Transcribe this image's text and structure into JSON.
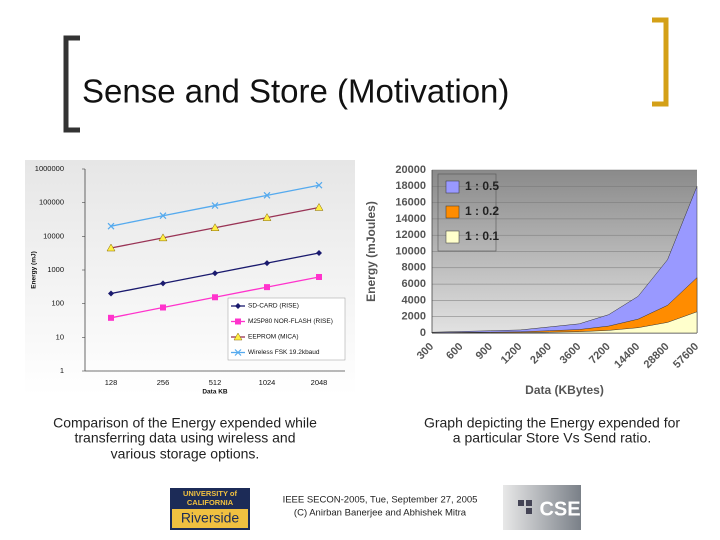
{
  "title": "Sense and Store (Motivation)",
  "captions": [
    [
      "Comparison of the Energy expended while",
      "transferring data using wireless and",
      "various storage options."
    ],
    [
      "Graph depicting the Energy expended for",
      "a particular Store Vs Send ratio."
    ]
  ],
  "footer": [
    "IEEE SECON-2005, Tue, September 27, 2005",
    "(C) Anirban Banerjee and Abhishek Mitra"
  ],
  "logos": {
    "ucr": [
      "UNIVERSITY of",
      "CALIFORNIA",
      "Riverside"
    ],
    "cse": "CSE"
  },
  "chart_data": [
    {
      "type": "line",
      "log_y": true,
      "legend": "lower-right",
      "grid": false,
      "ylabel": "Energy (mJ)",
      "xlabel": "Data KB",
      "categories": [
        "128",
        "256",
        "512",
        "1024",
        "2048"
      ],
      "ylim": [
        1,
        1000000
      ],
      "yticks": [
        1,
        10,
        100,
        1000,
        10000,
        100000,
        1000000
      ],
      "series": [
        {
          "name": "SD-CARD (RISE)",
          "color": "#1a1a6e",
          "marker": "diamond",
          "values": [
            200,
            400,
            800,
            1600,
            3200
          ]
        },
        {
          "name": "M25P80 NOR-FLASH (RISE)",
          "color": "#ff33cc",
          "marker": "square",
          "values": [
            38,
            77,
            155,
            310,
            620
          ]
        },
        {
          "name": "EEPROM (MICA)",
          "color": "#993355",
          "marker": "triangle",
          "values": [
            4500,
            9000,
            18000,
            36000,
            72000
          ]
        },
        {
          "name": "Wireless FSK 19.2kbaud",
          "color": "#55aaee",
          "marker": "x",
          "values": [
            20000,
            41000,
            82000,
            165000,
            330000
          ]
        }
      ]
    },
    {
      "type": "area",
      "legend": "upper-left",
      "grid": true,
      "ylabel": "Energy (mJoules)",
      "xlabel": "Data (KBytes)",
      "categories": [
        "300",
        "600",
        "900",
        "1200",
        "2400",
        "3600",
        "7200",
        "14400",
        "28800",
        "57600"
      ],
      "ylim": [
        0,
        20000
      ],
      "yticks": [
        0,
        2000,
        4000,
        6000,
        8000,
        10000,
        12000,
        14000,
        16000,
        18000,
        20000
      ],
      "series": [
        {
          "name": "1 : 0.5",
          "color": "#9999ff",
          "values": [
            94,
            190,
            280,
            375,
            750,
            1125,
            2250,
            4500,
            9000,
            18000
          ]
        },
        {
          "name": "1 : 0.2",
          "color": "#ff8c00",
          "values": [
            35,
            70,
            105,
            140,
            280,
            425,
            850,
            1700,
            3400,
            6800
          ]
        },
        {
          "name": "1 : 0.1",
          "color": "#ffffcc",
          "values": [
            13,
            26,
            40,
            53,
            105,
            160,
            320,
            650,
            1300,
            2600
          ]
        }
      ]
    }
  ]
}
